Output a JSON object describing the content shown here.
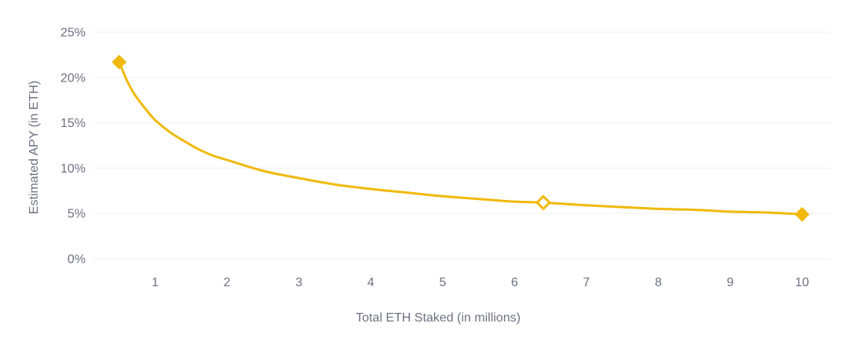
{
  "chart_data": {
    "type": "line",
    "title": "",
    "xlabel": "Total ETH Staked (in millions)",
    "ylabel": "Estimated APY (in ETH)",
    "xlim": [
      0,
      10.5
    ],
    "ylim": [
      0,
      25
    ],
    "x_ticks": [
      1,
      2,
      3,
      4,
      5,
      6,
      7,
      8,
      9,
      10
    ],
    "x_tick_labels": [
      "1",
      "2",
      "3",
      "4",
      "5",
      "6",
      "7",
      "8",
      "9",
      "10"
    ],
    "y_ticks": [
      0,
      5,
      10,
      15,
      20,
      25
    ],
    "y_tick_labels": [
      "0%",
      "5%",
      "10%",
      "15%",
      "20%",
      "25%"
    ],
    "grid": "horizontal",
    "legend": "none",
    "series": [
      {
        "color": "#f0b90b",
        "x": [
          0.5,
          0.6,
          0.7,
          0.8,
          0.9,
          1.0,
          1.2,
          1.4,
          1.6,
          1.8,
          2.0,
          2.5,
          3.0,
          3.5,
          4.0,
          4.5,
          5.0,
          5.5,
          6.0,
          6.4,
          7.0,
          7.5,
          8.0,
          8.5,
          9.0,
          9.5,
          10.0
        ],
        "y": [
          21.7,
          19.8,
          18.3,
          17.2,
          16.2,
          15.3,
          14.0,
          13.0,
          12.1,
          11.4,
          10.9,
          9.7,
          8.9,
          8.2,
          7.7,
          7.3,
          6.9,
          6.6,
          6.3,
          6.2,
          5.9,
          5.7,
          5.5,
          5.4,
          5.2,
          5.1,
          4.9
        ]
      }
    ],
    "markers": [
      {
        "x": 0.5,
        "y": 21.7,
        "style": "filled",
        "shape": "diamond"
      },
      {
        "x": 6.4,
        "y": 6.2,
        "style": "hollow",
        "shape": "diamond"
      },
      {
        "x": 10.0,
        "y": 4.9,
        "style": "filled",
        "shape": "diamond"
      }
    ]
  }
}
